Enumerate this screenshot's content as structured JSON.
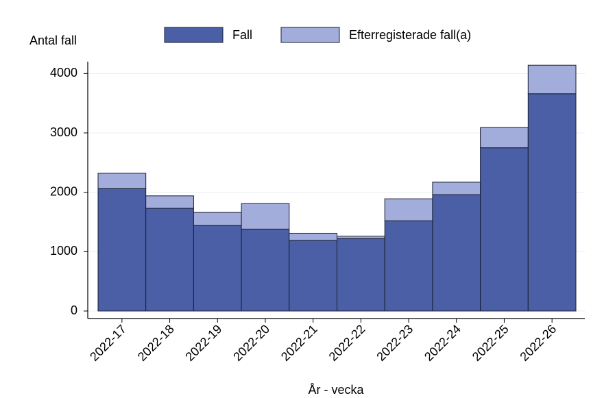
{
  "chart_data": {
    "type": "stacked_bar",
    "y_label": "Antal fall",
    "x_label": "År - vecka",
    "categories": [
      "2022-17",
      "2022-18",
      "2022-19",
      "2022-20",
      "2022-21",
      "2022-22",
      "2022-23",
      "2022-24",
      "2022-25",
      "2022-26"
    ],
    "series": [
      {
        "name": "Fall",
        "color": "#4a5fa5",
        "values": [
          2060,
          1730,
          1440,
          1380,
          1190,
          1220,
          1520,
          1960,
          2750,
          3660
        ]
      },
      {
        "name": "Efterregisterade fall(a)",
        "color": "#a3addb",
        "values": [
          260,
          210,
          220,
          430,
          120,
          40,
          370,
          210,
          340,
          480
        ]
      }
    ],
    "ylim": [
      0,
      4200
    ],
    "yticks": [
      0,
      1000,
      2000,
      3000,
      4000
    ],
    "grid": true,
    "legend": "top"
  }
}
